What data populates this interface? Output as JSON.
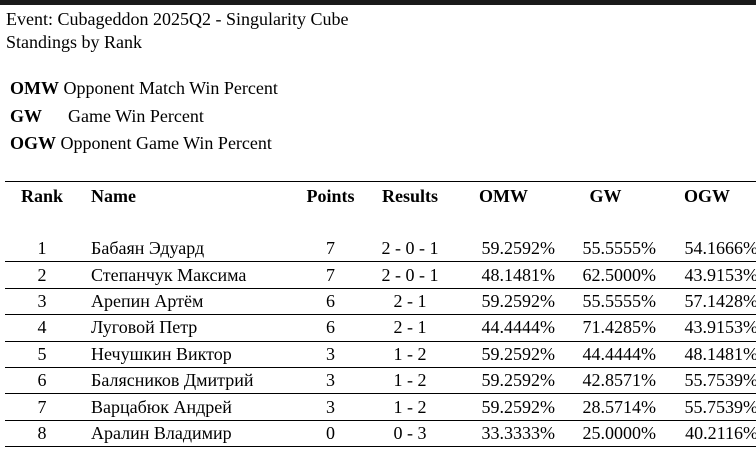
{
  "event": {
    "title": "Event: Cubageddon 2025Q2 - Singularity Cube",
    "subtitle": "Standings by Rank"
  },
  "legend": [
    {
      "abbr": "OMW",
      "text": "Opponent Match Win Percent"
    },
    {
      "abbr": "GW",
      "text": "Game Win Percent"
    },
    {
      "abbr": "OGW",
      "text": "Opponent Game Win Percent"
    }
  ],
  "columns": {
    "rank": "Rank",
    "name": "Name",
    "points": "Points",
    "results": "Results",
    "omw": "OMW",
    "gw": "GW",
    "ogw": "OGW"
  },
  "rows": [
    {
      "rank": "1",
      "name": "Бабаян Эдуард",
      "points": "7",
      "results": "2 - 0 - 1",
      "omw": "59.2592%",
      "gw": "55.5555%",
      "ogw": "54.1666%"
    },
    {
      "rank": "2",
      "name": "Степанчук Максима",
      "points": "7",
      "results": "2 - 0 - 1",
      "omw": "48.1481%",
      "gw": "62.5000%",
      "ogw": "43.9153%"
    },
    {
      "rank": "3",
      "name": "Арепин Артём",
      "points": "6",
      "results": "2 - 1",
      "omw": "59.2592%",
      "gw": "55.5555%",
      "ogw": "57.1428%"
    },
    {
      "rank": "4",
      "name": "Луговой Петр",
      "points": "6",
      "results": "2 - 1",
      "omw": "44.4444%",
      "gw": "71.4285%",
      "ogw": "43.9153%"
    },
    {
      "rank": "5",
      "name": "Нечушкин Виктор",
      "points": "3",
      "results": "1 - 2",
      "omw": "59.2592%",
      "gw": "44.4444%",
      "ogw": "48.1481%"
    },
    {
      "rank": "6",
      "name": "Балясников Дмитрий",
      "points": "3",
      "results": "1 - 2",
      "omw": "59.2592%",
      "gw": "42.8571%",
      "ogw": "55.7539%"
    },
    {
      "rank": "7",
      "name": "Варцабюк Андрей",
      "points": "3",
      "results": "1 - 2",
      "omw": "59.2592%",
      "gw": "28.5714%",
      "ogw": "55.7539%"
    },
    {
      "rank": "8",
      "name": "Аралин Владимир",
      "points": "0",
      "results": "0 - 3",
      "omw": "33.3333%",
      "gw": "25.0000%",
      "ogw": "40.2116%"
    }
  ]
}
